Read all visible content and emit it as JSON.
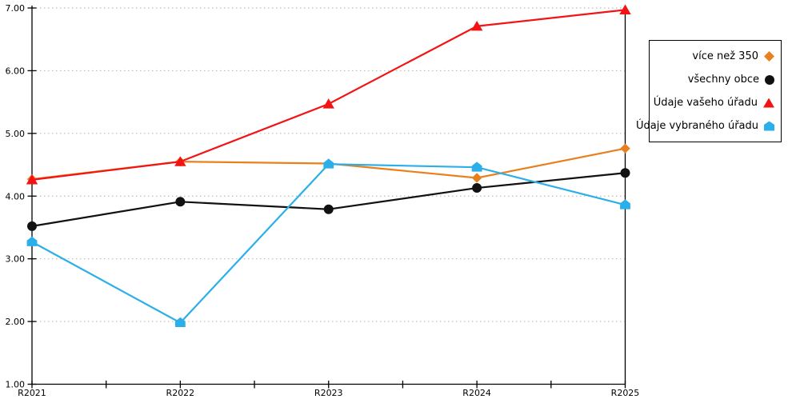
{
  "chart": {
    "background": "#FFFFFF",
    "grid_color": "#BBBBBB",
    "axis_color": "#000000",
    "text_color": "#000000"
  },
  "chart_data": {
    "type": "line",
    "title": "",
    "xlabel": "",
    "ylabel": "",
    "categories": [
      "R2021",
      "R2022",
      "R2023",
      "R2024",
      "R2025"
    ],
    "series": [
      {
        "name": "více než 350",
        "color": "#E8801E",
        "marker": "diamond",
        "values": [
          4.27,
          4.55,
          4.52,
          4.29,
          4.76
        ]
      },
      {
        "name": "všechny obce",
        "color": "#111111",
        "marker": "circle",
        "values": [
          3.52,
          3.91,
          3.79,
          4.13,
          4.37
        ]
      },
      {
        "name": "Údaje vašeho úřadu",
        "color": "#F21414",
        "marker": "triangle",
        "values": [
          4.26,
          4.55,
          5.47,
          6.71,
          6.97
        ]
      },
      {
        "name": "Údaje vybraného úřadu",
        "color": "#2BAFE8",
        "marker": "pentagon",
        "values": [
          3.27,
          1.98,
          4.51,
          4.46,
          3.86
        ]
      }
    ],
    "ylim": [
      1,
      7
    ],
    "y_ticks": [
      "1.00",
      "2.00",
      "3.00",
      "4.00",
      "5.00",
      "6.00",
      "7.00"
    ],
    "grid": "horizontal-dotted",
    "legend_position": "top-right"
  }
}
